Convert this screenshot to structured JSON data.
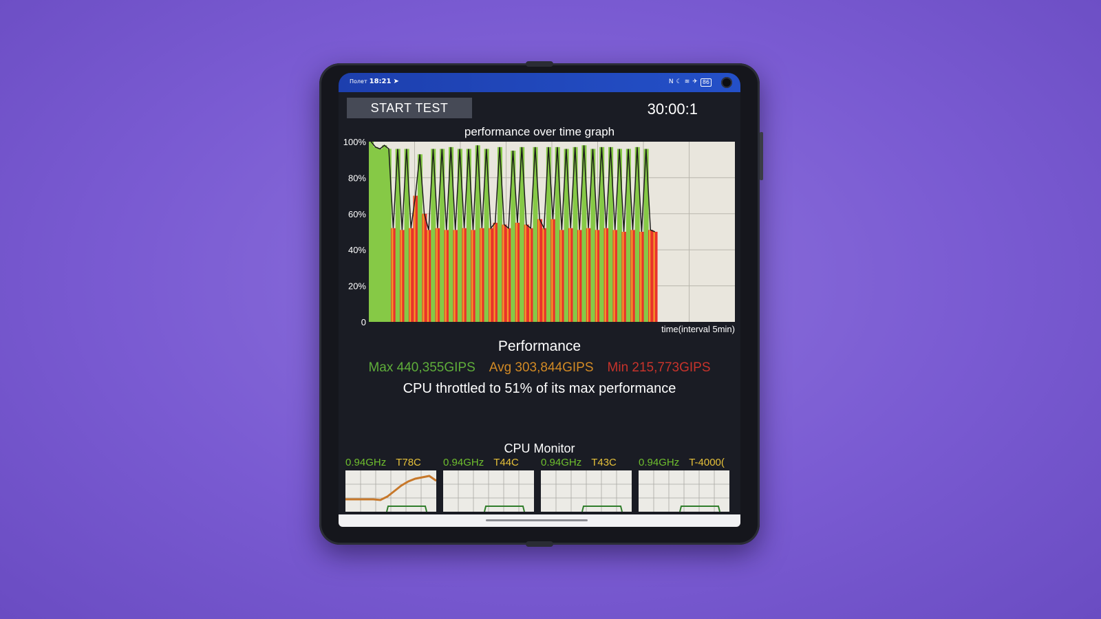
{
  "status_bar": {
    "carrier": "Полет",
    "time": "18:21",
    "icons": [
      "nfc-icon",
      "moon-icon",
      "wifi-icon",
      "airplane-icon"
    ],
    "battery": "86"
  },
  "header": {
    "start_button": "START TEST",
    "timer": "30:00:1"
  },
  "chart_data": {
    "type": "area",
    "title": "performance over time graph",
    "xlabel": "time(interval 5min)",
    "y_ticks": [
      "100%",
      "80%",
      "60%",
      "40%",
      "20%",
      "0"
    ],
    "ylim": [
      0,
      100
    ],
    "x_total_minutes": 40,
    "x_data_end_minutes": 31.5,
    "colors": {
      "high": "#86c946",
      "mid": "#f39a28",
      "low": "#e9332b",
      "line": "#1b1b1b"
    },
    "series": [
      {
        "values": [
          100,
          97,
          96,
          98,
          96,
          52,
          96,
          51,
          96,
          52,
          70,
          93,
          60,
          51,
          96,
          52,
          96,
          51,
          97,
          51,
          96,
          52,
          96,
          51,
          98,
          52,
          96,
          52,
          55,
          97,
          54,
          52,
          95,
          55,
          97,
          54,
          52,
          97,
          57,
          52,
          97,
          57,
          97,
          51,
          96,
          52,
          97,
          51,
          98,
          52,
          96,
          51,
          97,
          52,
          97,
          51,
          96,
          50,
          96,
          51,
          97,
          50,
          96,
          51,
          50
        ]
      }
    ]
  },
  "performance": {
    "title": "Performance",
    "max": "Max 440,355GIPS",
    "avg": "Avg 303,844GIPS",
    "min": "Min 215,773GIPS",
    "throttle_text": "CPU throttled to 51% of its max performance"
  },
  "cpu_monitor": {
    "title": "CPU Monitor",
    "cores": [
      {
        "freq": "0.94GHz",
        "temp": "T78C",
        "temp_trace": [
          18,
          18,
          18,
          18,
          18,
          17,
          22,
          30,
          38,
          44,
          48,
          50,
          52,
          45
        ]
      },
      {
        "freq": "0.94GHz",
        "temp": "T44C",
        "temp_trace": []
      },
      {
        "freq": "0.94GHz",
        "temp": "T43C",
        "temp_trace": []
      },
      {
        "freq": "0.94GHz",
        "temp": "T-4000(",
        "temp_trace": []
      }
    ]
  }
}
